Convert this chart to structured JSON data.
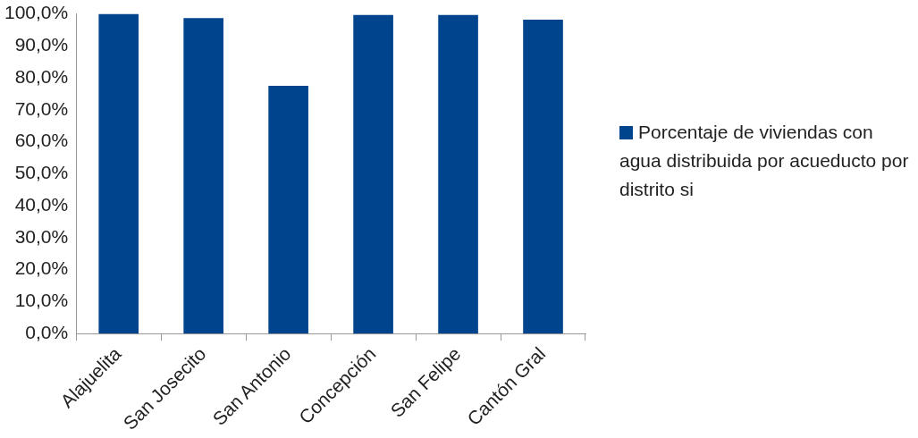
{
  "chart_data": {
    "type": "bar",
    "categories": [
      "Alajuelita",
      "San Josecito",
      "San Antonio",
      "Concepción",
      "San Felipe",
      "Cantón Gral"
    ],
    "series": [
      {
        "name": "Porcentaje de viviendas con agua distribuida por acueducto por distrito si",
        "color": "#00448e",
        "values": [
          100,
          98.7,
          77.5,
          99.7,
          99.7,
          98.2
        ]
      }
    ],
    "ylim": [
      0,
      100
    ],
    "yticks": [
      {
        "value": 0,
        "label": "0,0%"
      },
      {
        "value": 10,
        "label": "10,0%"
      },
      {
        "value": 20,
        "label": "20,0%"
      },
      {
        "value": 30,
        "label": "30,0%"
      },
      {
        "value": 40,
        "label": "40,0%"
      },
      {
        "value": 50,
        "label": "50,0%"
      },
      {
        "value": 60,
        "label": "60,0%"
      },
      {
        "value": 70,
        "label": "70,0%"
      },
      {
        "value": 80,
        "label": "80,0%"
      },
      {
        "value": 90,
        "label": "90,0%"
      },
      {
        "value": 100,
        "label": "100,0%"
      }
    ],
    "grid": false,
    "legend": "right"
  }
}
